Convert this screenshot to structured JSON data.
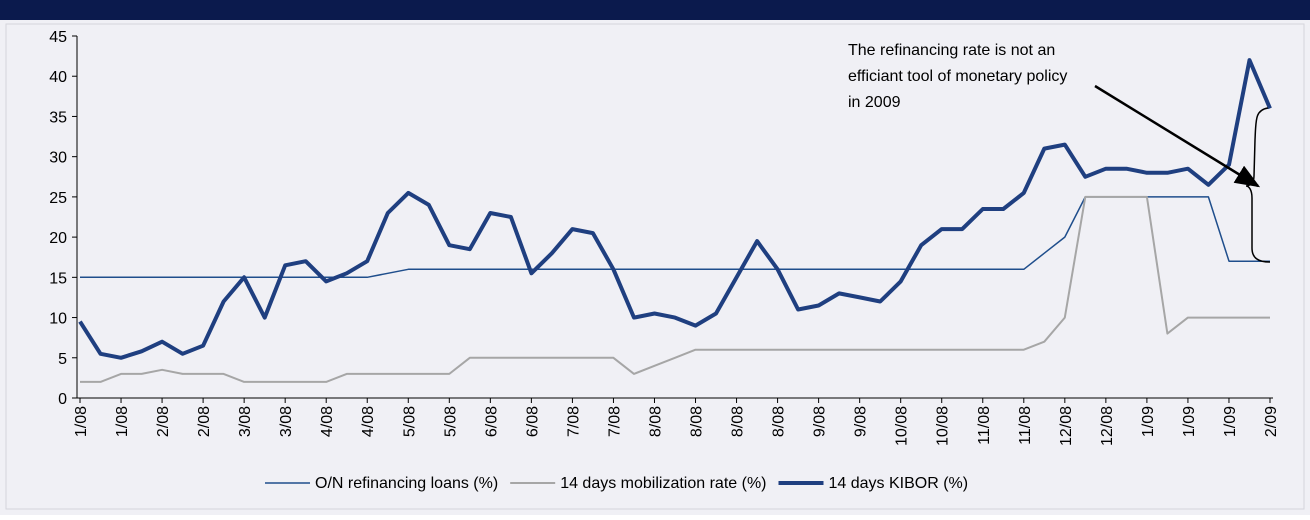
{
  "chart_data": {
    "type": "line",
    "categories": [
      "1/08",
      null,
      "1/08",
      null,
      "2/08",
      null,
      "2/08",
      null,
      "3/08",
      null,
      "3/08",
      null,
      "4/08",
      null,
      "4/08",
      null,
      "5/08",
      null,
      "5/08",
      null,
      "6/08",
      null,
      "6/08",
      null,
      "7/08",
      null,
      "7/08",
      null,
      "8/08",
      null,
      "8/08",
      null,
      "8/08",
      null,
      "8/08",
      null,
      "9/08",
      null,
      "9/08",
      null,
      "10/08",
      null,
      "10/08",
      null,
      "11/08",
      null,
      "11/08",
      null,
      "12/08",
      null,
      "12/08",
      null,
      "1/09",
      null,
      "1/09",
      null,
      "1/09",
      null,
      "2/09"
    ],
    "series": [
      {
        "name": "O/N refinancing loans (%)",
        "color": "#1f4e8c",
        "values": [
          15,
          15,
          15,
          15,
          15,
          15,
          15,
          15,
          15,
          15,
          15,
          15,
          15,
          15,
          15,
          15.5,
          16,
          16,
          16,
          16,
          16,
          16,
          16,
          16,
          16,
          16,
          16,
          16,
          16,
          16,
          16,
          16,
          16,
          16,
          16,
          16,
          16,
          16,
          16,
          16,
          16,
          16,
          16,
          16,
          16,
          16,
          16,
          18,
          20,
          25,
          25,
          25,
          25,
          25,
          25,
          25,
          17,
          17,
          17
        ]
      },
      {
        "name": "14 days mobilization rate (%)",
        "color": "#a6a6a6",
        "values": [
          2,
          2,
          3,
          3,
          3.5,
          3,
          3,
          3,
          2,
          2,
          2,
          2,
          2,
          3,
          3,
          3,
          3,
          3,
          3,
          5,
          5,
          5,
          5,
          5,
          5,
          5,
          5,
          3,
          4,
          5,
          6,
          6,
          6,
          6,
          6,
          6,
          6,
          6,
          6,
          6,
          6,
          6,
          6,
          6,
          6,
          6,
          6,
          7,
          10,
          25,
          25,
          25,
          25,
          8,
          10,
          10,
          10,
          10,
          10
        ]
      },
      {
        "name": "14 days KIBOR (%)",
        "color": "#1f3f80",
        "values": [
          9.5,
          5.5,
          5,
          5.8,
          7,
          5.5,
          6.5,
          12,
          15,
          10,
          16.5,
          17,
          14.5,
          15.5,
          17,
          23,
          25.5,
          24,
          19,
          18.5,
          23,
          22.5,
          15.5,
          18,
          21,
          20.5,
          16,
          10,
          10.5,
          10,
          9,
          10.5,
          15,
          19.5,
          16,
          11,
          11.5,
          13,
          12.5,
          12,
          14.5,
          19,
          21,
          21,
          23.5,
          23.5,
          25.5,
          31,
          31.5,
          27.5,
          28.5,
          28.5,
          28,
          28,
          28.5,
          26.5,
          29,
          42,
          36
        ]
      }
    ],
    "ylim": [
      0,
      45
    ],
    "yticks": [
      0,
      5,
      10,
      15,
      20,
      25,
      30,
      35,
      40,
      45
    ],
    "annotation_lines": [
      "The refinancing rate is not an",
      "efficiant tool of monetary policy",
      "in 2009"
    ],
    "legend": "bottom",
    "grid": false
  }
}
